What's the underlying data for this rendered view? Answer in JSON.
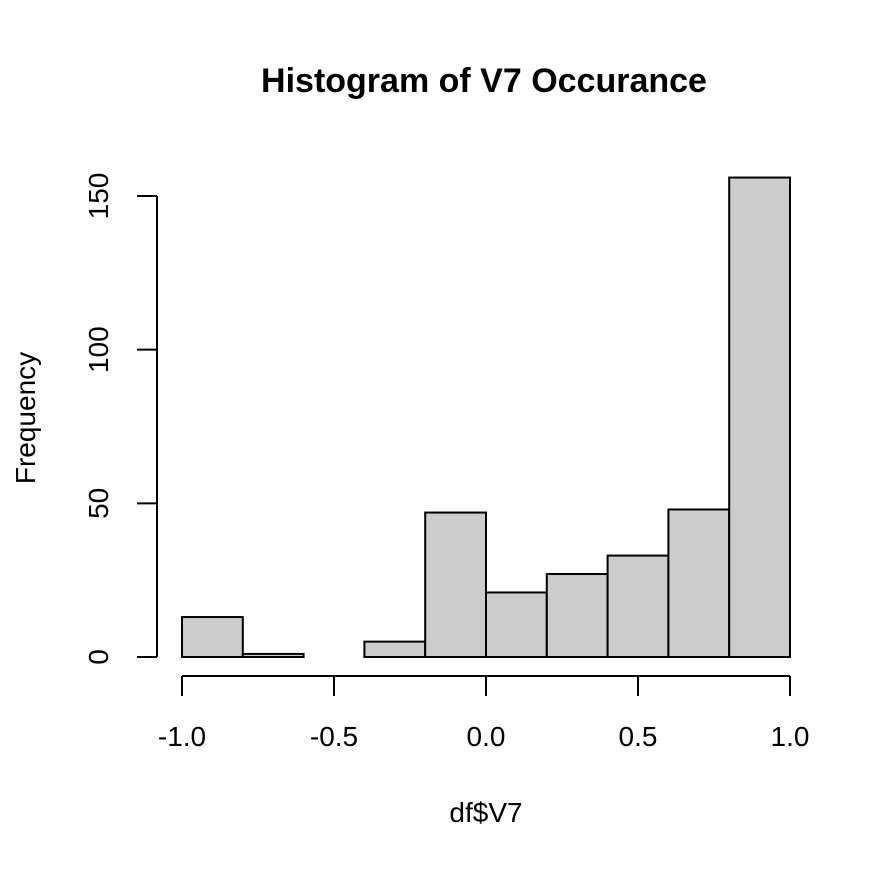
{
  "chart_data": {
    "type": "bar",
    "title": "Histogram of V7 Occurance",
    "xlabel": "df$V7",
    "ylabel": "Frequency",
    "bins": [
      {
        "x0": -1.0,
        "x1": -0.8,
        "count": 13
      },
      {
        "x0": -0.8,
        "x1": -0.6,
        "count": 1
      },
      {
        "x0": -0.6,
        "x1": -0.4,
        "count": 0
      },
      {
        "x0": -0.4,
        "x1": -0.2,
        "count": 5
      },
      {
        "x0": -0.2,
        "x1": 0.0,
        "count": 47
      },
      {
        "x0": 0.0,
        "x1": 0.2,
        "count": 21
      },
      {
        "x0": 0.2,
        "x1": 0.4,
        "count": 27
      },
      {
        "x0": 0.4,
        "x1": 0.6,
        "count": 33
      },
      {
        "x0": 0.6,
        "x1": 0.8,
        "count": 48
      },
      {
        "x0": 0.8,
        "x1": 1.0,
        "count": 156
      }
    ],
    "x_ticks": [
      {
        "value": -1.0,
        "label": "-1.0"
      },
      {
        "value": -0.5,
        "label": "-0.5"
      },
      {
        "value": 0.0,
        "label": "0.0"
      },
      {
        "value": 0.5,
        "label": "0.5"
      },
      {
        "value": 1.0,
        "label": "1.0"
      }
    ],
    "y_ticks": [
      {
        "value": 0,
        "label": "0"
      },
      {
        "value": 50,
        "label": "50"
      },
      {
        "value": 100,
        "label": "100"
      },
      {
        "value": 150,
        "label": "150"
      }
    ],
    "xlim": [
      -1.0,
      1.0
    ],
    "ylim": [
      0,
      150
    ],
    "grid": false,
    "bar_color": "#cccccc"
  }
}
